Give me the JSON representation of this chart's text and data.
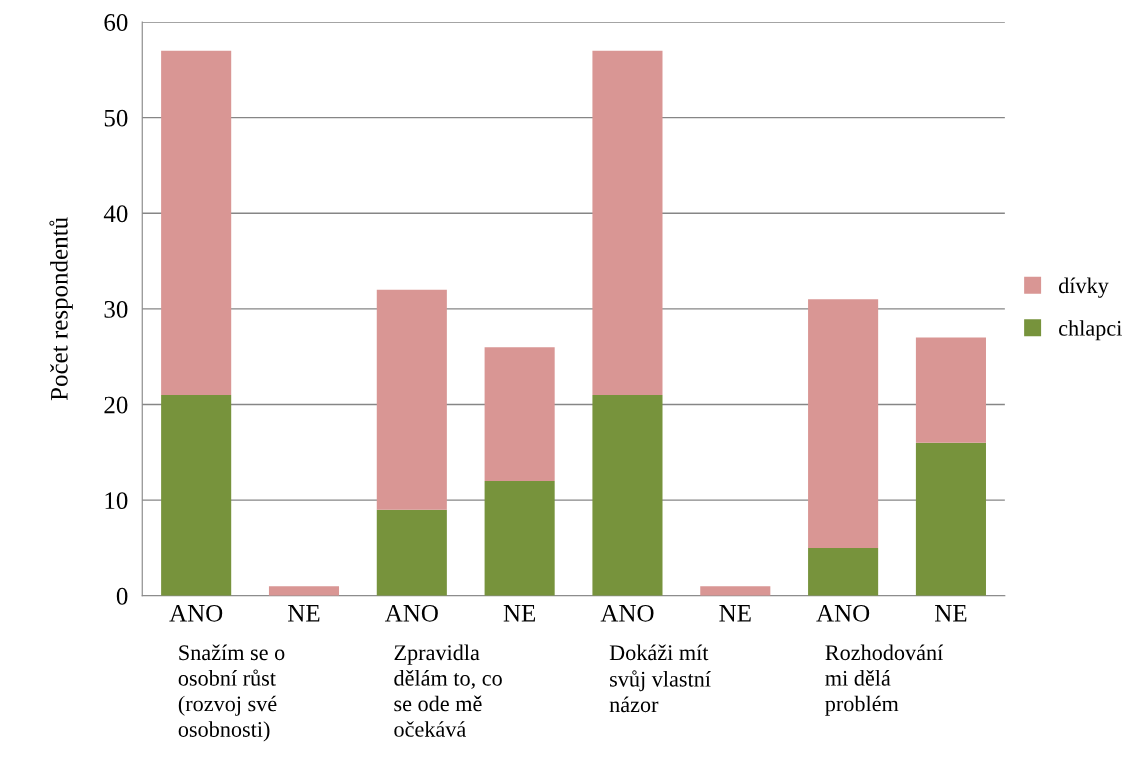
{
  "chart_data": {
    "type": "bar",
    "stacked": true,
    "ylabel": "Počet respondentů",
    "categories": [
      "ANO",
      "NE",
      "ANO",
      "NE",
      "ANO",
      "NE",
      "ANO",
      "NE"
    ],
    "series": [
      {
        "name": "chlapci",
        "color": "#77933c",
        "values": [
          21,
          0,
          9,
          12,
          21,
          0,
          5,
          16
        ]
      },
      {
        "name": "dívky",
        "color": "#d99694",
        "values": [
          36,
          1,
          23,
          14,
          36,
          1,
          26,
          11
        ]
      }
    ],
    "annotations": [
      "Snažím se o\nosobní růst\n(rozvoj své\nosobnosti)",
      "Zpravidla\ndělám to, co\nse ode mě\nočekává",
      "Dokáži mít\nsvůj vlastní\nnázor",
      "Rozhodování\nmi dělá\nproblém"
    ],
    "ylim": [
      0,
      60
    ],
    "yticks": [
      0,
      10,
      20,
      30,
      40,
      50,
      60
    ],
    "grid": "y",
    "legend": "right"
  }
}
